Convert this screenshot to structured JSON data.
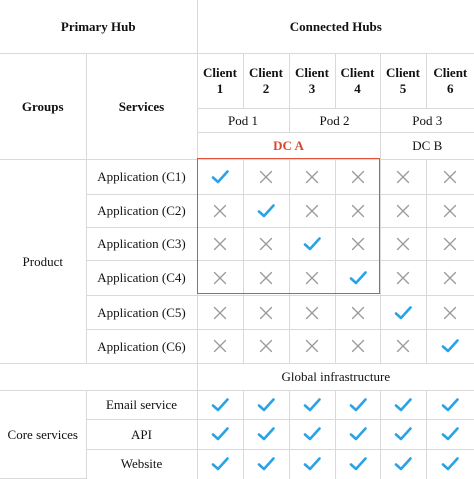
{
  "header": {
    "primary_hub": "Primary Hub",
    "connected_hubs": "Connected Hubs",
    "groups": "Groups",
    "services": "Services"
  },
  "clients": [
    {
      "line1": "Client",
      "line2": "1"
    },
    {
      "line1": "Client",
      "line2": "2"
    },
    {
      "line1": "Client",
      "line2": "3"
    },
    {
      "line1": "Client",
      "line2": "4"
    },
    {
      "line1": "Client",
      "line2": "5"
    },
    {
      "line1": "Client",
      "line2": "6"
    }
  ],
  "pods": [
    "Pod 1",
    "Pod 2",
    "Pod 3"
  ],
  "datacenters": [
    "DC A",
    "DC B"
  ],
  "groups": {
    "product": "Product",
    "core": "Core services"
  },
  "global_infra": "Global infrastructure",
  "rows": [
    {
      "service": "Application (C1)",
      "marks": [
        "check",
        "cross",
        "cross",
        "cross",
        "cross",
        "cross"
      ]
    },
    {
      "service": "Application (C2)",
      "marks": [
        "cross",
        "check",
        "cross",
        "cross",
        "cross",
        "cross"
      ]
    },
    {
      "service": "Application (C3)",
      "marks": [
        "cross",
        "cross",
        "check",
        "cross",
        "cross",
        "cross"
      ]
    },
    {
      "service": "Application (C4)",
      "marks": [
        "cross",
        "cross",
        "cross",
        "check",
        "cross",
        "cross"
      ]
    },
    {
      "service": "Application (C5)",
      "marks": [
        "cross",
        "cross",
        "cross",
        "cross",
        "check",
        "cross"
      ]
    },
    {
      "service": "Application (C6)",
      "marks": [
        "cross",
        "cross",
        "cross",
        "cross",
        "cross",
        "check"
      ]
    },
    {
      "service": "Email service",
      "marks": [
        "check",
        "check",
        "check",
        "check",
        "check",
        "check"
      ]
    },
    {
      "service": "API",
      "marks": [
        "check",
        "check",
        "check",
        "check",
        "check",
        "check"
      ]
    },
    {
      "service": "Website",
      "marks": [
        "check",
        "check",
        "check",
        "check",
        "check",
        "check"
      ]
    }
  ],
  "colors": {
    "check": "#2aa3e6",
    "cross": "#9a9a9a",
    "highlight": "#e0513a",
    "dc_a_text": "#d9482b"
  }
}
